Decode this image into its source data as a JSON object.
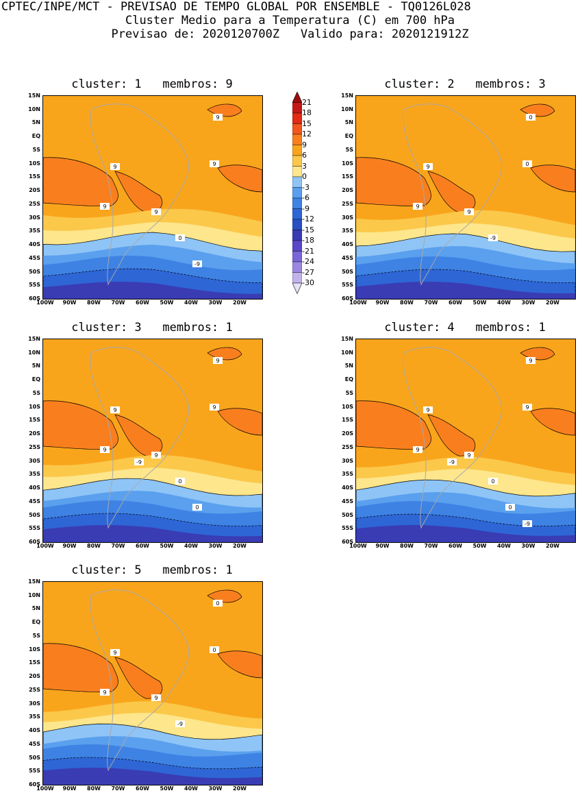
{
  "header": {
    "line1": "CPTEC/INPE/MCT - PREVISAO DE TEMPO GLOBAL POR ENSEMBLE - TQ0126L028",
    "line2": "Cluster Medio para a Temperatura (C) em 700 hPa",
    "line3": "Previsao de: 2020120700Z   Valido para: 2020121912Z"
  },
  "lat_ticks": [
    "15N",
    "10N",
    "5N",
    "EQ",
    "5S",
    "10S",
    "15S",
    "20S",
    "25S",
    "30S",
    "35S",
    "40S",
    "45S",
    "50S",
    "55S",
    "60S"
  ],
  "lon_ticks": [
    "100W",
    "90W",
    "80W",
    "70W",
    "60W",
    "50W",
    "40W",
    "30W",
    "20W"
  ],
  "colorbar": {
    "labels": [
      "21",
      "18",
      "15",
      "12",
      "9",
      "6",
      "3",
      "0",
      "-3",
      "-6",
      "-9",
      "-12",
      "-15",
      "-18",
      "-21",
      "-24",
      "-27",
      "-30"
    ],
    "colors": [
      "#9b0c0c",
      "#c41818",
      "#e22a14",
      "#f1561e",
      "#f97f1e",
      "#f9a51c",
      "#fbc84a",
      "#fde68c",
      "#8fc4f6",
      "#5aa0ee",
      "#3e82e4",
      "#2e66d6",
      "#2a4fc4",
      "#3a3cb4",
      "#5a48c8",
      "#7a66d8",
      "#9c86e2",
      "#c2b2ec",
      "#e8e2f6"
    ]
  },
  "panels": [
    {
      "title": "cluster: 1   membros: 9",
      "labels": [
        "9",
        "9",
        "9",
        "9",
        "9",
        "0",
        "-9"
      ]
    },
    {
      "title": "cluster: 2   membros: 3",
      "labels": [
        "9",
        "9",
        "9",
        "0",
        "0",
        "-9"
      ]
    },
    {
      "title": "cluster: 3   membros: 1",
      "labels": [
        "9",
        "9",
        "9",
        "9",
        "9",
        "0",
        "0",
        "-9"
      ]
    },
    {
      "title": "cluster: 4   membros: 1",
      "labels": [
        "9",
        "9",
        "9",
        "9",
        "9",
        "0",
        "0",
        "-9",
        "-9"
      ]
    },
    {
      "title": "cluster: 5   membros: 1",
      "labels": [
        "9",
        "9",
        "9",
        "0",
        "0",
        "-9"
      ]
    }
  ]
}
